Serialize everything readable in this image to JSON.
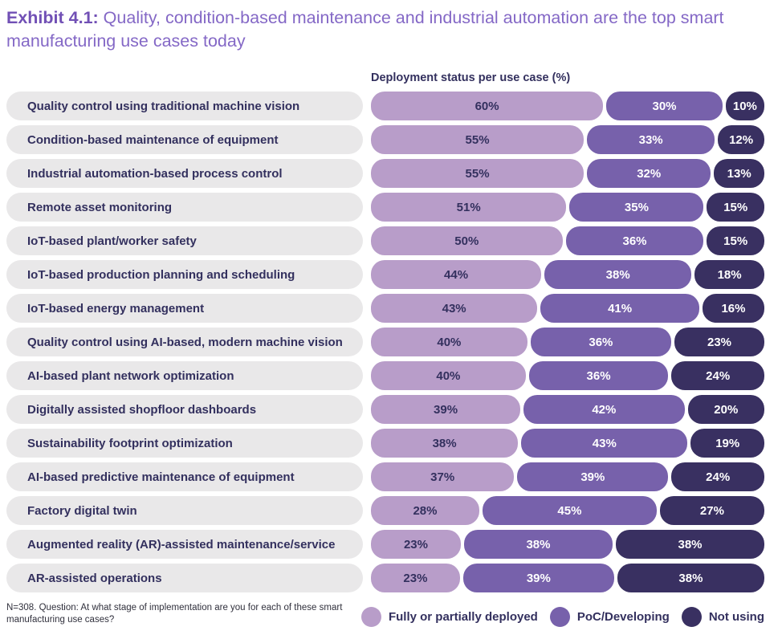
{
  "page": {
    "title_prefix": "Exhibit 4.1:",
    "title_rest": " Quality, condition-based maintenance and industrial automation are the top smart manufacturing use cases today",
    "footnote": "N=308. Question: At what stage of implementation are you for each of these smart manufacturing use cases?"
  },
  "colors": {
    "title_prefix": "#7150b5",
    "title_rest": "#8468c6",
    "heading_text": "#33305e",
    "label_pill_bg": "#e9e8e9",
    "segment_text_dark": "#33305e",
    "segment_text_light": "#ffffff"
  },
  "chart_data": {
    "type": "bar",
    "orientation": "horizontal-stacked",
    "title": "Deployment status per use case (%)",
    "value_suffix": "%",
    "xlim": [
      0,
      100
    ],
    "grid": false,
    "legend_position": "bottom-right",
    "categories": [
      "Quality control using traditional machine vision",
      "Condition-based maintenance of equipment",
      "Industrial automation-based process control",
      "Remote asset monitoring",
      "IoT-based plant/worker safety",
      "IoT-based production planning and scheduling",
      "IoT-based energy management",
      "Quality control using AI-based, modern machine vision",
      "AI-based plant network optimization",
      "Digitally assisted shopfloor dashboards",
      "Sustainability footprint optimization",
      "AI-based predictive maintenance of equipment",
      "Factory digital twin",
      "Augmented reality (AR)-assisted maintenance/service",
      "AR-assisted operations"
    ],
    "series": [
      {
        "name": "Fully or partially deployed",
        "key": "fully-or-partially-deployed",
        "color": "#b89dc9",
        "values": [
          60,
          55,
          55,
          51,
          50,
          44,
          43,
          40,
          40,
          39,
          38,
          37,
          28,
          23,
          23
        ]
      },
      {
        "name": "PoC/Developing",
        "key": "poc-developing",
        "color": "#7761ab",
        "values": [
          30,
          33,
          32,
          35,
          36,
          38,
          41,
          36,
          36,
          42,
          43,
          39,
          45,
          38,
          39
        ]
      },
      {
        "name": "Not using",
        "key": "not-using",
        "color": "#393061",
        "values": [
          10,
          12,
          13,
          15,
          15,
          18,
          16,
          23,
          24,
          20,
          19,
          24,
          27,
          38,
          38
        ]
      }
    ]
  }
}
